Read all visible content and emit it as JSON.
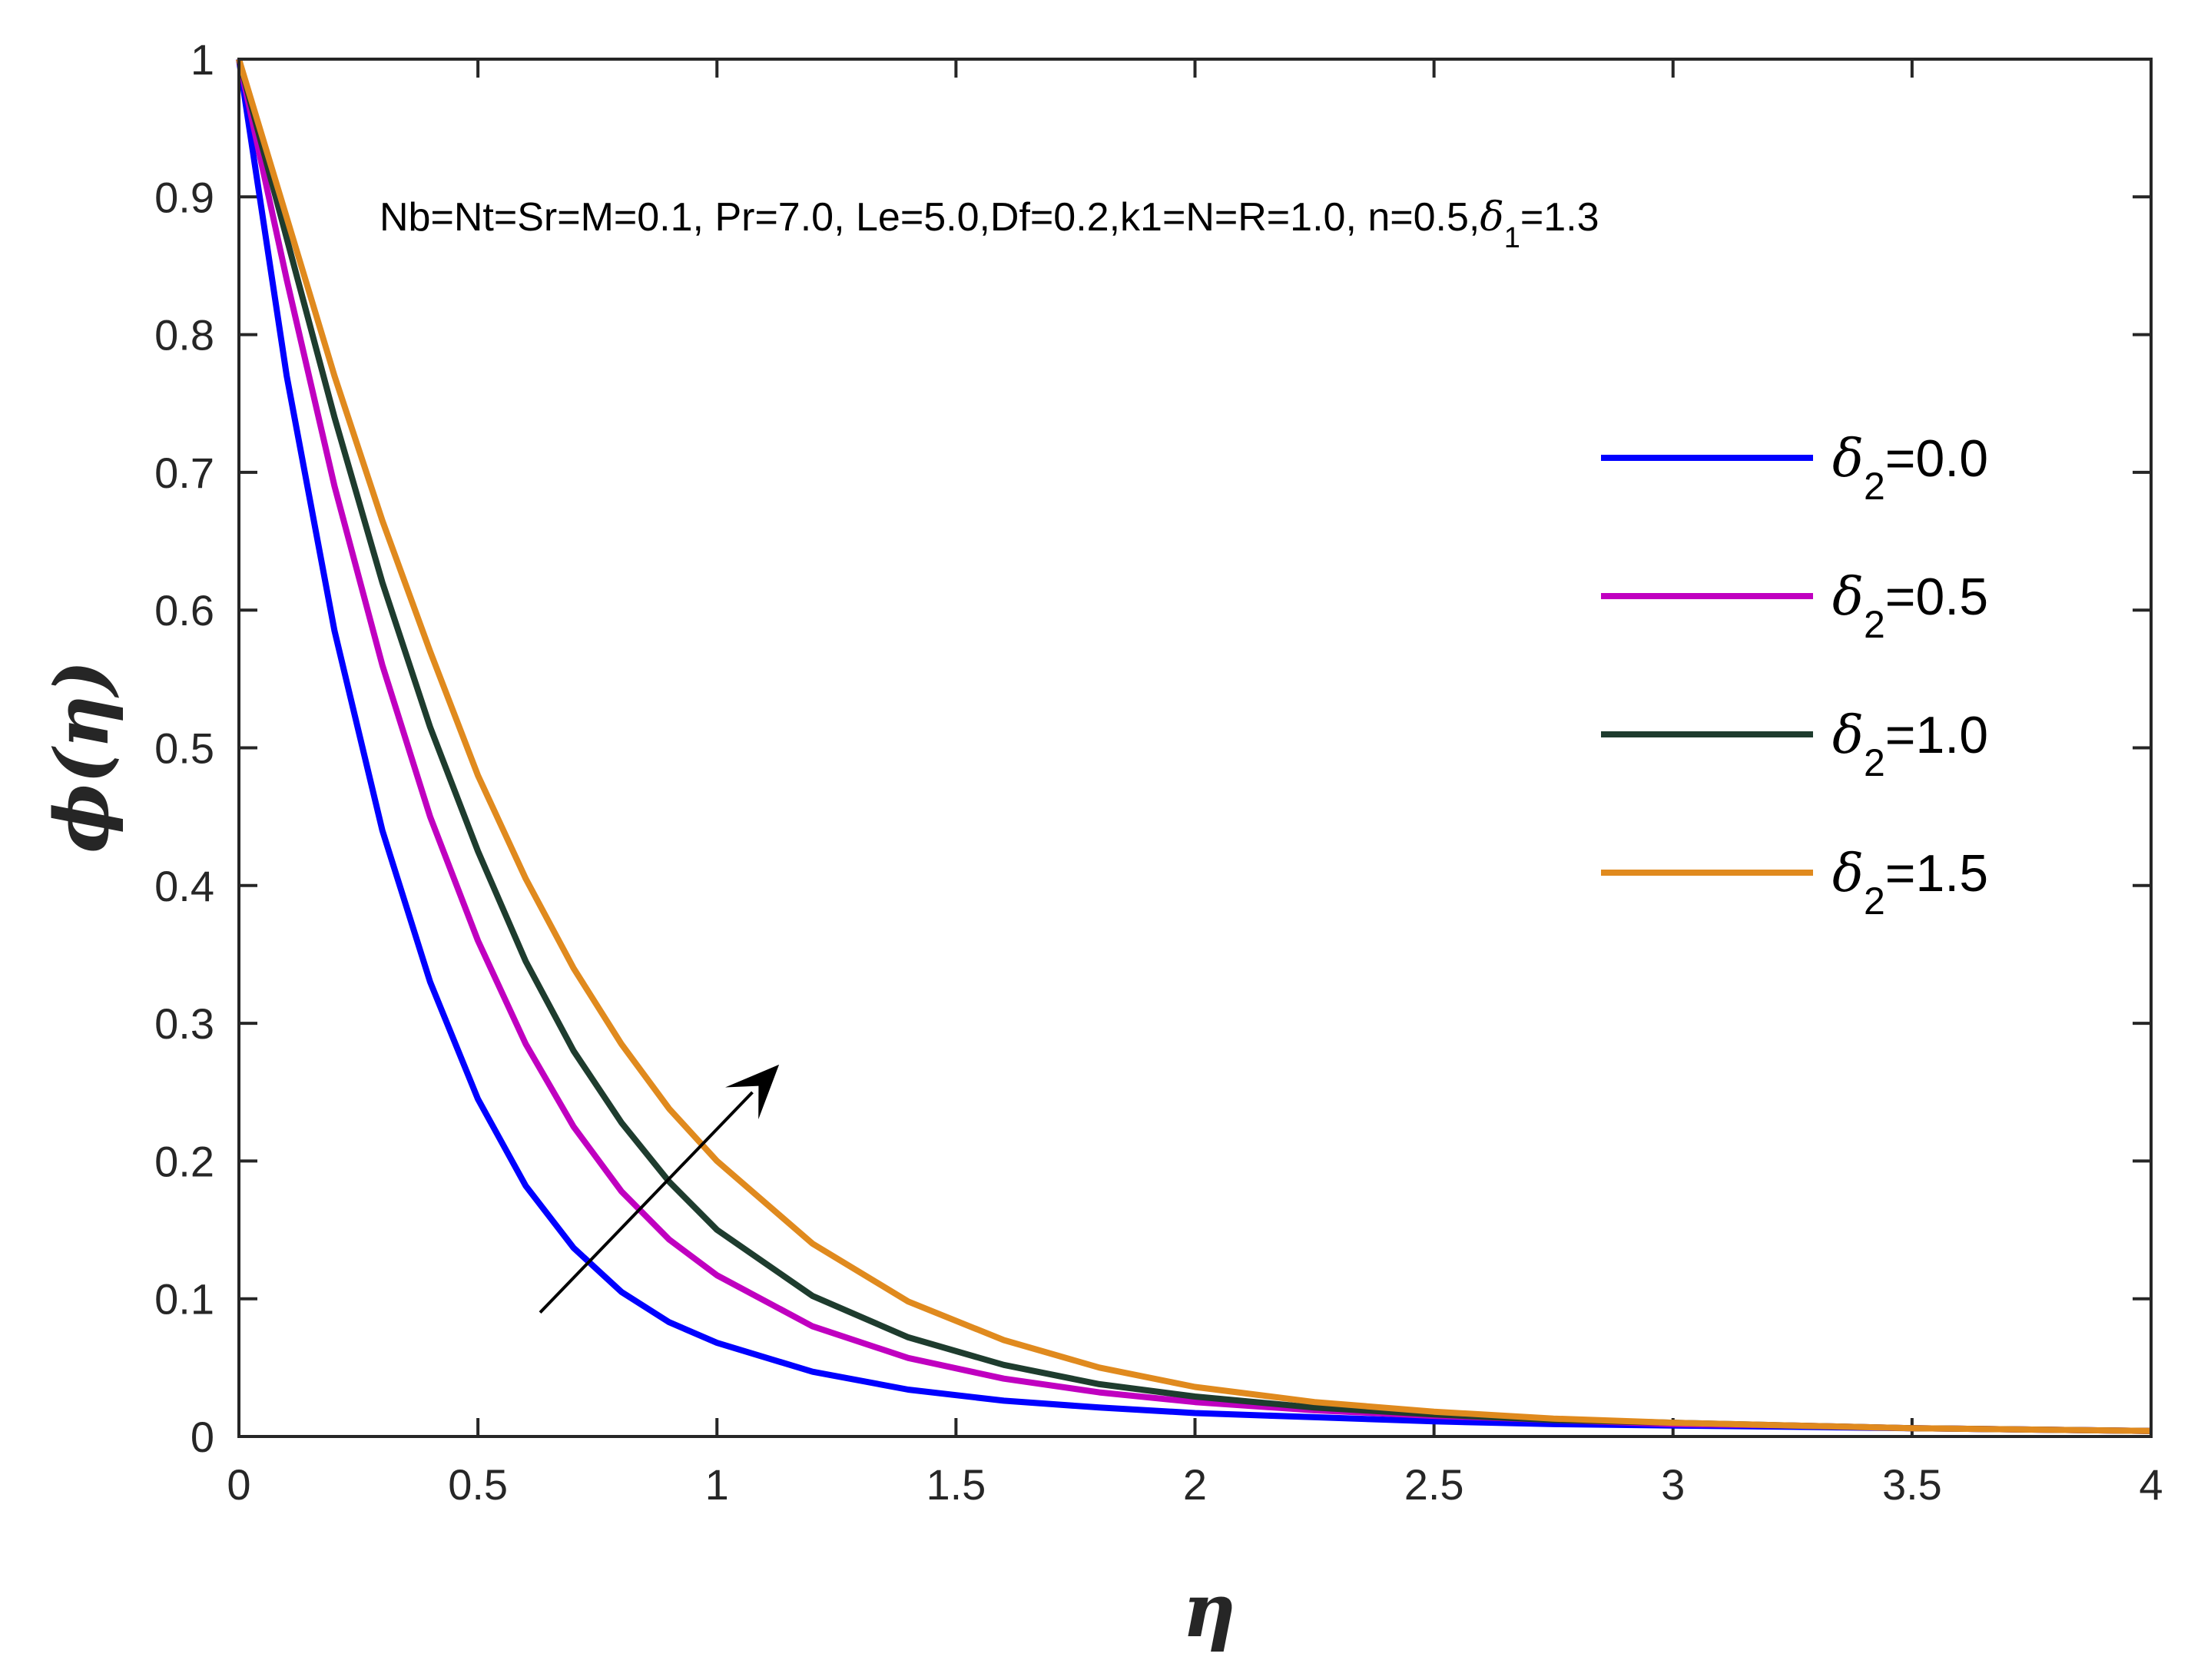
{
  "chart_data": {
    "type": "line",
    "xlabel": "η",
    "ylabel": "ϕ(η)",
    "xlim": [
      0,
      4
    ],
    "ylim": [
      0,
      1
    ],
    "xticks": [
      "0",
      "0.5",
      "1",
      "1.5",
      "2",
      "2.5",
      "3",
      "3.5",
      "4"
    ],
    "yticks": [
      "0",
      "0.1",
      "0.2",
      "0.3",
      "0.4",
      "0.5",
      "0.6",
      "0.7",
      "0.8",
      "0.9",
      "1"
    ],
    "annotation": {
      "prefix": "Nb=Nt=Sr=M=0.1, Pr=7.0, Le=5.0,Df=0.2,k1=N=R=1.0, n=0.5,",
      "symbol": "δ",
      "subscript": "1",
      "suffix": "=1.3"
    },
    "legend_position": "right",
    "arrow": {
      "from": [
        0.63,
        0.09
      ],
      "to": [
        1.13,
        0.27
      ],
      "meaning": "increasing δ2"
    },
    "x": [
      0,
      0.1,
      0.2,
      0.3,
      0.4,
      0.5,
      0.6,
      0.7,
      0.8,
      0.9,
      1.0,
      1.2,
      1.4,
      1.6,
      1.8,
      2.0,
      2.25,
      2.5,
      2.75,
      3.0,
      3.25,
      3.5,
      3.75,
      4.0
    ],
    "series": [
      {
        "symbol": "δ",
        "subscript": "2",
        "value_label": "=0.0",
        "color": "#0000ff",
        "values": [
          1.0,
          0.77,
          0.585,
          0.44,
          0.33,
          0.245,
          0.182,
          0.137,
          0.105,
          0.083,
          0.068,
          0.047,
          0.034,
          0.026,
          0.021,
          0.017,
          0.014,
          0.011,
          0.009,
          0.008,
          0.007,
          0.006,
          0.005,
          0.004
        ]
      },
      {
        "symbol": "δ",
        "subscript": "2",
        "value_label": "=0.5",
        "color": "#c000c0",
        "values": [
          1.0,
          0.84,
          0.69,
          0.56,
          0.45,
          0.36,
          0.285,
          0.225,
          0.178,
          0.143,
          0.117,
          0.08,
          0.057,
          0.042,
          0.032,
          0.025,
          0.019,
          0.015,
          0.012,
          0.009,
          0.008,
          0.006,
          0.005,
          0.004
        ]
      },
      {
        "symbol": "δ",
        "subscript": "2",
        "value_label": "=1.0",
        "color": "#1e3c2e",
        "values": [
          1.0,
          0.87,
          0.74,
          0.62,
          0.515,
          0.425,
          0.345,
          0.28,
          0.228,
          0.185,
          0.15,
          0.102,
          0.072,
          0.052,
          0.038,
          0.029,
          0.021,
          0.016,
          0.012,
          0.01,
          0.008,
          0.006,
          0.005,
          0.004
        ]
      },
      {
        "symbol": "δ",
        "subscript": "2",
        "value_label": "=1.5",
        "color": "#e08a1e",
        "values": [
          1.0,
          0.885,
          0.77,
          0.665,
          0.57,
          0.48,
          0.405,
          0.34,
          0.285,
          0.238,
          0.2,
          0.14,
          0.098,
          0.07,
          0.05,
          0.036,
          0.025,
          0.018,
          0.013,
          0.01,
          0.008,
          0.006,
          0.005,
          0.004
        ]
      }
    ]
  }
}
